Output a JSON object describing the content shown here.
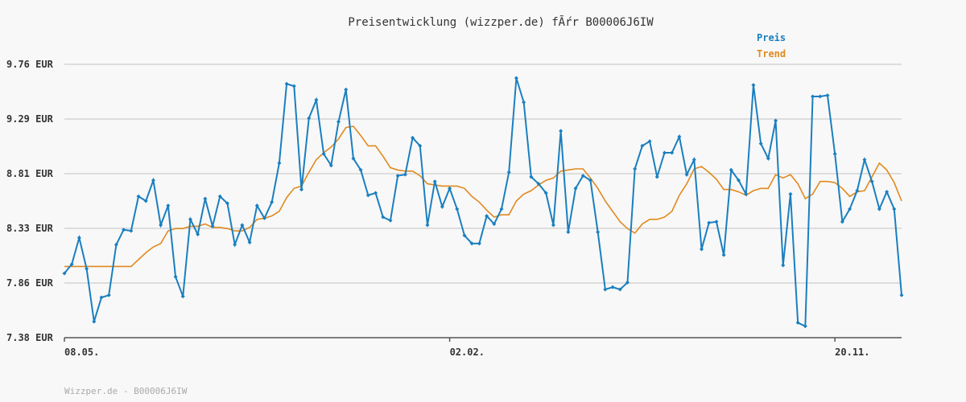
{
  "chart_data": {
    "type": "line",
    "title": "Preisentwicklung (wizzper.de) fÃŕr B00006J6IW",
    "footer": "Wizzper.de - B00006J6IW",
    "y_ticks": [
      "7.38 EUR",
      "7.86 EUR",
      "8.33 EUR",
      "8.81 EUR",
      "9.29 EUR",
      "9.76 EUR"
    ],
    "ylim": [
      7.38,
      9.76
    ],
    "x_ticks": [
      {
        "label": "08.05.",
        "index": 0
      },
      {
        "label": "02.02.",
        "index": 52
      },
      {
        "label": "20.11.",
        "index": 104
      }
    ],
    "grid": true,
    "legend_position": "top-right",
    "colors": {
      "preis": "#1a7fbf",
      "trend": "#e08a1e",
      "grid": "#dddddd",
      "axis": "#555555"
    },
    "series": [
      {
        "name": "Preis",
        "color": "#1a7fbf",
        "values": [
          7.94,
          8.02,
          8.25,
          7.98,
          7.52,
          7.73,
          7.75,
          8.19,
          8.32,
          8.31,
          8.61,
          8.57,
          8.75,
          8.36,
          8.53,
          7.91,
          7.74,
          8.41,
          8.28,
          8.59,
          8.35,
          8.61,
          8.55,
          8.19,
          8.36,
          8.21,
          8.53,
          8.42,
          8.56,
          8.9,
          9.59,
          9.57,
          8.67,
          9.29,
          9.45,
          8.98,
          8.88,
          9.26,
          9.54,
          8.94,
          8.84,
          8.62,
          8.64,
          8.43,
          8.4,
          8.79,
          8.8,
          9.12,
          9.05,
          8.36,
          8.74,
          8.52,
          8.68,
          8.5,
          8.27,
          8.2,
          8.2,
          8.44,
          8.37,
          8.5,
          8.82,
          9.64,
          9.43,
          8.78,
          8.72,
          8.64,
          8.36,
          9.18,
          8.3,
          8.68,
          8.79,
          8.75,
          8.3,
          7.8,
          7.82,
          7.8,
          7.86,
          8.85,
          9.05,
          9.09,
          8.78,
          8.99,
          8.99,
          9.13,
          8.8,
          8.93,
          8.15,
          8.38,
          8.39,
          8.1,
          8.84,
          8.75,
          8.63,
          9.58,
          9.07,
          8.94,
          9.27,
          8.01,
          8.63,
          7.51,
          7.48,
          9.48,
          9.48,
          9.49,
          8.98,
          8.39,
          8.5,
          8.66,
          8.93,
          8.74,
          8.5,
          8.65,
          8.5,
          7.75
        ]
      },
      {
        "name": "Trend",
        "color": "#e08a1e",
        "values": [
          8.0,
          8.0,
          8.0,
          8.0,
          8.0,
          8.0,
          8.0,
          8.0,
          8.0,
          8.0,
          8.06,
          8.12,
          8.17,
          8.2,
          8.31,
          8.33,
          8.33,
          8.35,
          8.35,
          8.37,
          8.34,
          8.34,
          8.33,
          8.31,
          8.31,
          8.34,
          8.41,
          8.42,
          8.44,
          8.48,
          8.6,
          8.68,
          8.7,
          8.82,
          8.93,
          8.99,
          9.04,
          9.11,
          9.21,
          9.22,
          9.14,
          9.05,
          9.05,
          8.96,
          8.86,
          8.84,
          8.83,
          8.83,
          8.79,
          8.72,
          8.71,
          8.7,
          8.7,
          8.7,
          8.68,
          8.61,
          8.56,
          8.49,
          8.43,
          8.45,
          8.45,
          8.57,
          8.63,
          8.66,
          8.71,
          8.75,
          8.77,
          8.83,
          8.84,
          8.85,
          8.85,
          8.77,
          8.68,
          8.57,
          8.48,
          8.39,
          8.33,
          8.29,
          8.37,
          8.41,
          8.41,
          8.43,
          8.48,
          8.62,
          8.72,
          8.85,
          8.87,
          8.82,
          8.76,
          8.67,
          8.67,
          8.65,
          8.62,
          8.66,
          8.68,
          8.68,
          8.8,
          8.77,
          8.8,
          8.72,
          8.59,
          8.63,
          8.74,
          8.74,
          8.73,
          8.68,
          8.61,
          8.65,
          8.66,
          8.78,
          8.9,
          8.84,
          8.73,
          8.57
        ]
      }
    ]
  }
}
